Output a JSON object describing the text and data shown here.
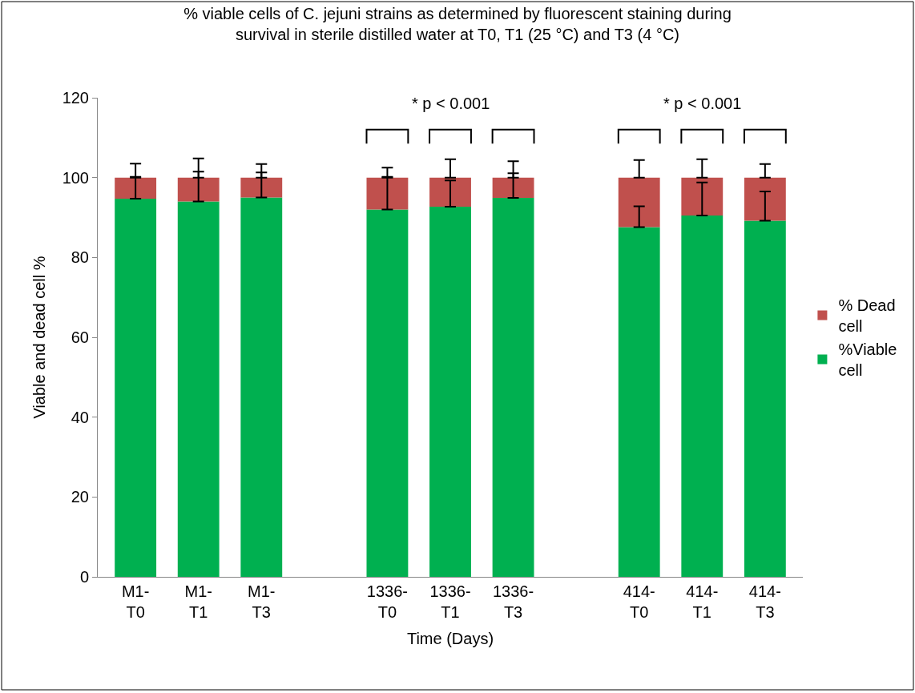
{
  "chart_data": {
    "type": "bar",
    "title": "% viable cells of C. jejuni strains as determined by fluorescent staining during survival in sterile distilled water at T0, T1 (25 °C) and T3 (4 °C)",
    "xlabel": "Time (Days)",
    "ylabel": "Viable and dead cell %",
    "categories": [
      "M1-T0",
      "M1-T1",
      "M1-T3",
      null,
      "1336-T0",
      "1336-T1",
      "1336-T3",
      null,
      "414-T0",
      "414-T1",
      "414-T3"
    ],
    "stacked": true,
    "series": [
      {
        "name": "%Viable cell",
        "color": "#00b050",
        "values": [
          94.7,
          94.0,
          95.0,
          null,
          92.0,
          92.7,
          94.9,
          null,
          87.6,
          90.5,
          89.2
        ],
        "errors": [
          [
            94.7,
            100.2
          ],
          [
            94.0,
            101.5
          ],
          [
            95.0,
            101.3
          ],
          null,
          [
            92.0,
            100.2
          ],
          [
            92.7,
            99.3
          ],
          [
            94.9,
            101.1
          ],
          null,
          [
            87.6,
            92.8
          ],
          [
            90.5,
            98.8
          ],
          [
            89.2,
            96.5
          ]
        ]
      },
      {
        "name": "% Dead cell",
        "color": "#c0504d",
        "values": [
          5.3,
          6.0,
          5.0,
          null,
          8.0,
          7.3,
          5.1,
          null,
          12.4,
          9.5,
          10.8
        ],
        "errors": [
          [
            100,
            103.5
          ],
          [
            100,
            104.8
          ],
          [
            100,
            103.4
          ],
          null,
          [
            100,
            102.5
          ],
          [
            100,
            104.6
          ],
          [
            100,
            104.1
          ],
          null,
          [
            100,
            104.4
          ],
          [
            100,
            104.6
          ],
          [
            100,
            103.4
          ]
        ]
      }
    ],
    "annotations": [
      "* p < 0.001",
      "* p < 0.001"
    ],
    "ylim": [
      0,
      120
    ],
    "yticks": [
      0,
      20,
      40,
      60,
      80,
      100,
      120
    ],
    "legend": "right"
  }
}
